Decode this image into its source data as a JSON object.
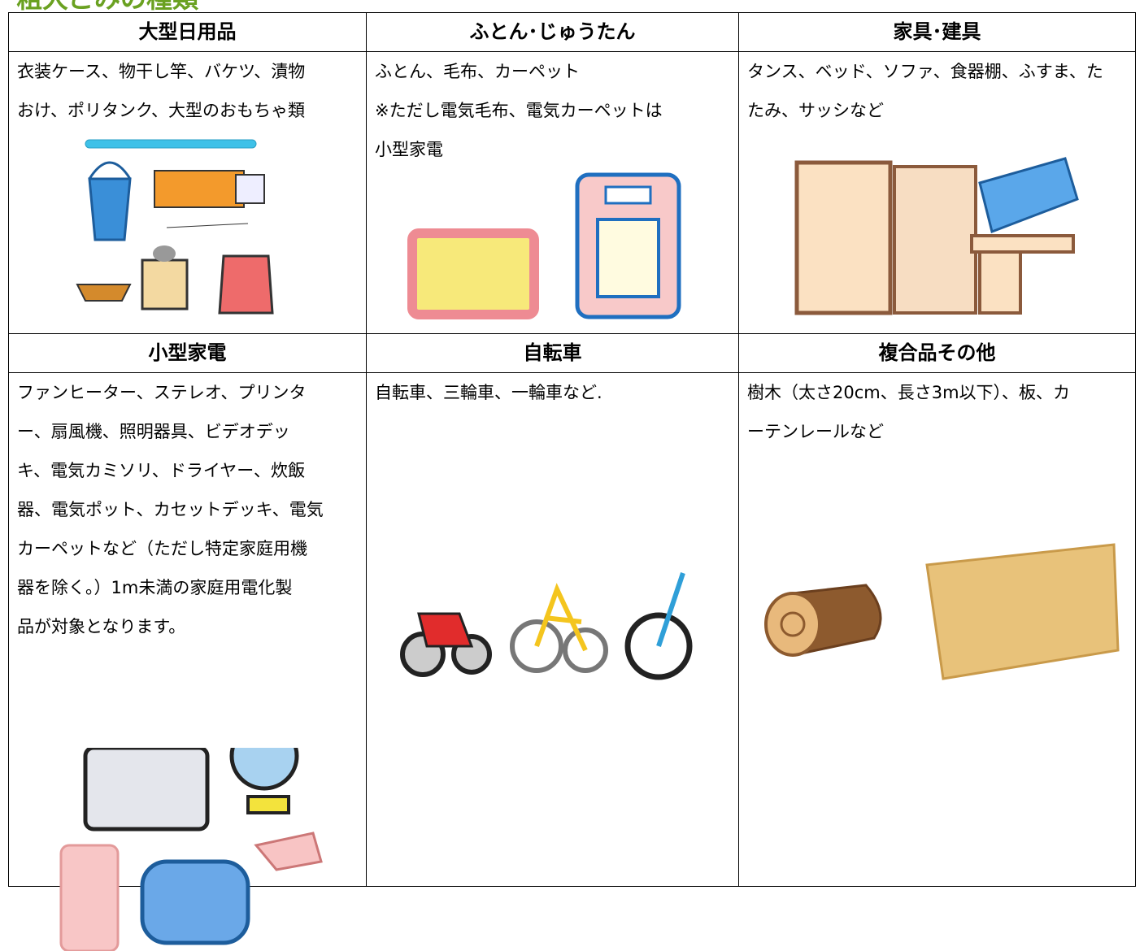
{
  "title": "粗大ごみの種類",
  "table": {
    "sections": [
      {
        "header": "大型日用品",
        "lines": [
          "衣装ケース、物干し竿、バケツ、漬物",
          "おけ、ポリタンク、大型のおもちゃ類"
        ]
      },
      {
        "header": "ふとん･じゅうたん",
        "lines": [
          "ふとん、毛布、カーペット",
          "※ただし電気毛布、電気カーペットは",
          "小型家電"
        ]
      },
      {
        "header": "家具･建具",
        "lines": [
          "タンス、ベッド、ソファ、食器棚、ふすま、た",
          "たみ、サッシなど"
        ]
      },
      {
        "header": "小型家電",
        "lines": [
          "ファンヒーター、ステレオ、プリンタ",
          "ー、扇風機、照明器具、ビデオデッ",
          "キ、電気カミソリ、ドライヤー、炊飯",
          "器、電気ポット、カセットデッキ、電気",
          "カーペットなど（ただし特定家庭用機",
          "器を除く。）1m未満の家庭用電化製",
          "品が対象となります。"
        ]
      },
      {
        "header": "自転車",
        "lines": [
          "自転車、三輪車、一輪車など."
        ]
      },
      {
        "header": "複合品その他",
        "lines": [
          "樹木（太さ20cm、長さ3m以下）、板、カ",
          "ーテンレールなど"
        ]
      }
    ]
  }
}
